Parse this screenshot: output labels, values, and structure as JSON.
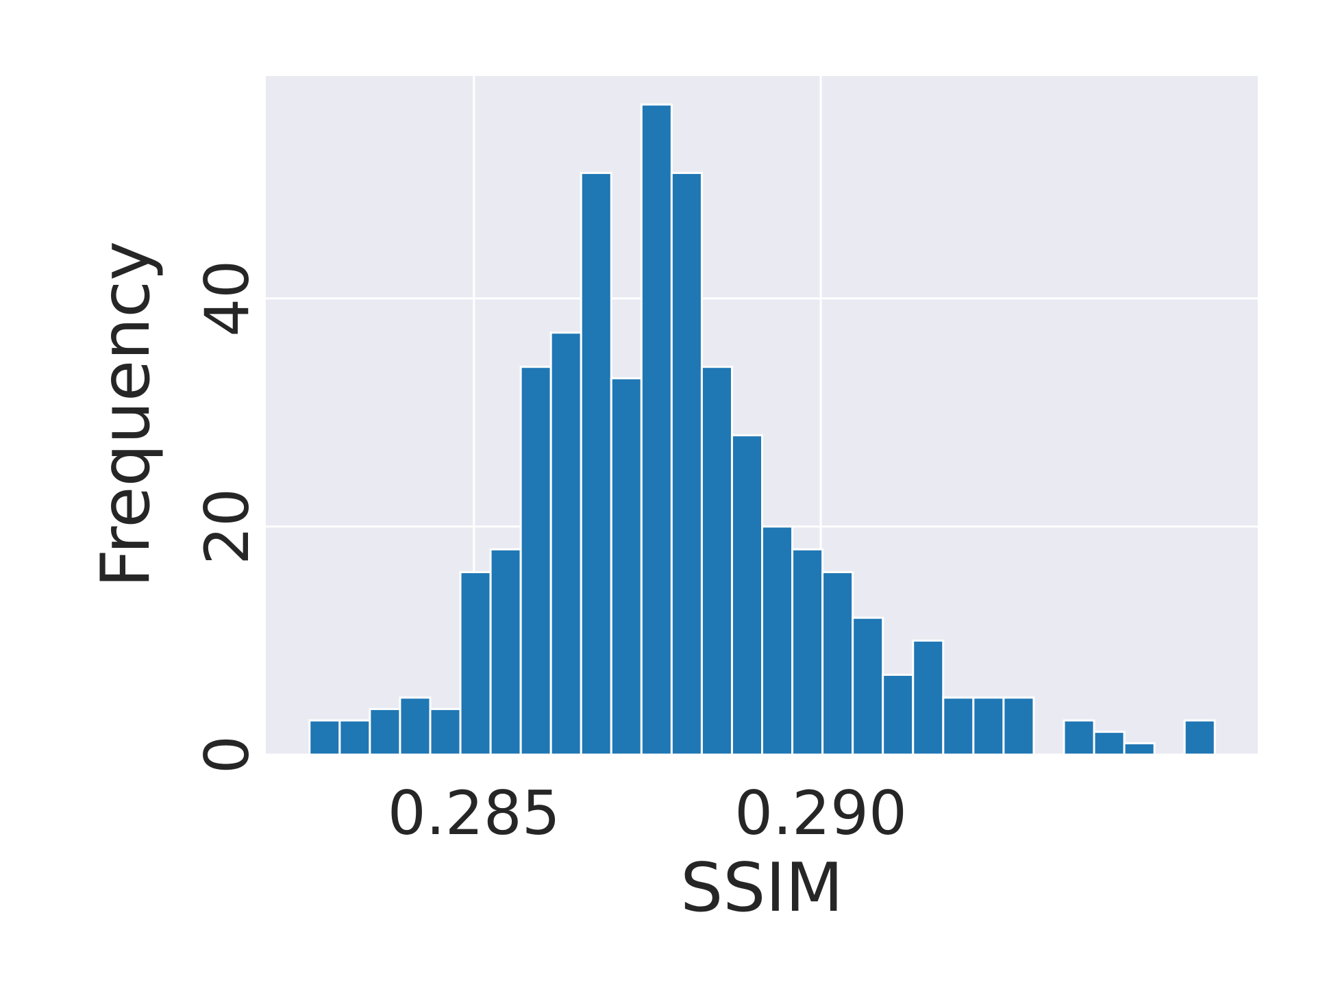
{
  "chart_data": {
    "type": "bar",
    "title": "",
    "xlabel": "SSIM",
    "ylabel": "Frequency",
    "bin_width": 0.000435,
    "bin_starts": [
      0.28263,
      0.283065,
      0.2835,
      0.283935,
      0.28437,
      0.284805,
      0.28524,
      0.285675,
      0.28611,
      0.286545,
      0.28698,
      0.287415,
      0.28785,
      0.288285,
      0.28872,
      0.289155,
      0.28959,
      0.290025,
      0.29046,
      0.290895,
      0.29133,
      0.291765,
      0.2922,
      0.292635,
      0.29307,
      0.293505,
      0.29394,
      0.294375,
      0.29481,
      0.295245
    ],
    "values": [
      3,
      3,
      4,
      5,
      4,
      16,
      18,
      34,
      37,
      51,
      33,
      57,
      51,
      34,
      28,
      20,
      18,
      16,
      12,
      7,
      10,
      5,
      5,
      5,
      0,
      3,
      2,
      1,
      0,
      3
    ],
    "xlim": [
      0.282,
      0.2963
    ],
    "ylim": [
      0,
      59.5
    ],
    "xticks": [
      0.285,
      0.29
    ],
    "xtick_labels": [
      "0.285",
      "0.290"
    ],
    "yticks": [
      0,
      20,
      40
    ],
    "ytick_labels": [
      "0",
      "20",
      "40"
    ],
    "grid": true,
    "colors": {
      "bar": "#1f77b4",
      "bar_edge": "#ffffff",
      "plot_background": "#eaeaf2",
      "grid": "#ffffff",
      "text": "#262626"
    }
  }
}
